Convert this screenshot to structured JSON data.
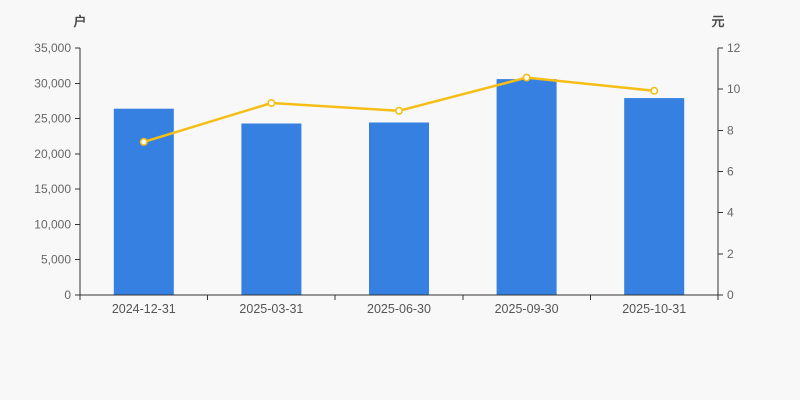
{
  "page": {
    "background": "#f8f8f8"
  },
  "chart_data": {
    "type": "bar",
    "subtype": "bar-line-combo-dual-axis",
    "title": "",
    "grid": false,
    "legend_visible": false,
    "categories": [
      "2024-12-31",
      "2025-03-31",
      "2025-06-30",
      "2025-09-30",
      "2025-10-31"
    ],
    "series": [
      {
        "type": "bar",
        "axis": "left",
        "color": "#3580e0",
        "values": [
          26400,
          24300,
          24450,
          30600,
          27900
        ]
      },
      {
        "type": "line",
        "axis": "right",
        "color": "#f6be14",
        "marker": "hollow-circle",
        "marker_fill": "#ffffff",
        "values": [
          7.44,
          9.33,
          8.95,
          10.56,
          9.92
        ]
      }
    ],
    "left_axis": {
      "unit_label": "户",
      "min": 0,
      "max": 35000,
      "tick_values": [
        0,
        5000,
        10000,
        15000,
        20000,
        25000,
        30000,
        35000
      ],
      "tick_labels": [
        "0",
        "5,000",
        "10,000",
        "15,000",
        "20,000",
        "25,000",
        "30,000",
        "35,000"
      ]
    },
    "right_axis": {
      "unit_label": "元",
      "min": 0,
      "max": 12,
      "tick_values": [
        0,
        2,
        4,
        6,
        8,
        10,
        12
      ],
      "tick_labels": [
        "0",
        "2",
        "4",
        "6",
        "8",
        "10",
        "12"
      ]
    }
  },
  "styles": {
    "axis_color": "#333333",
    "tick_label_color": "#666666",
    "x_label_color": "#555555"
  }
}
